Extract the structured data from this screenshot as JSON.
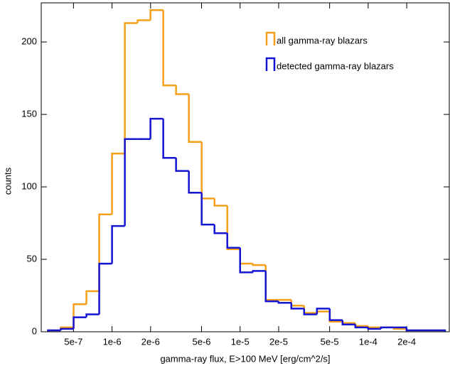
{
  "chart_data": {
    "type": "histogram",
    "xlabel": "gamma-ray flux, E>100 MeV [erg/cm^2/s]",
    "ylabel": "counts",
    "xscale": "log",
    "bins": [
      3.162e-07,
      3.981e-07,
      5.012e-07,
      6.31e-07,
      7.943e-07,
      1e-06,
      1.259e-06,
      1.585e-06,
      1.995e-06,
      2.512e-06,
      3.162e-06,
      3.981e-06,
      5.012e-06,
      6.31e-06,
      7.943e-06,
      1e-05,
      1.259e-05,
      1.585e-05,
      1.995e-05,
      2.512e-05,
      3.162e-05,
      3.981e-05,
      5.012e-05,
      6.31e-05,
      7.943e-05,
      0.0001,
      0.0001259,
      0.0001585,
      0.0001995,
      0.0002512,
      0.0003162,
      0.0003981
    ],
    "series": [
      {
        "name": "all gamma-ray blazars",
        "color": "#f5a01a",
        "values": [
          1,
          3,
          19,
          28,
          81,
          123,
          213,
          215,
          222,
          170,
          164,
          131,
          92,
          87,
          57,
          47,
          46,
          22,
          22,
          18,
          13,
          14,
          7,
          6,
          4,
          3,
          3,
          2,
          1,
          1,
          1
        ]
      },
      {
        "name": "detected gamma-ray blazars",
        "color": "#1414d2",
        "values": [
          1,
          2,
          10,
          12,
          47,
          73,
          133,
          133,
          147,
          120,
          111,
          96,
          74,
          68,
          58,
          41,
          42,
          21,
          20,
          16,
          12,
          16,
          8,
          5,
          3,
          2,
          3,
          3,
          1,
          1,
          1
        ]
      }
    ],
    "xlim": [
      2.8e-07,
      0.00043
    ],
    "ylim": [
      0,
      227
    ],
    "xticks": [
      {
        "value": 5e-07,
        "label": "5e-7"
      },
      {
        "value": 1e-06,
        "label": "1e-6"
      },
      {
        "value": 2e-06,
        "label": "2e-6"
      },
      {
        "value": 5e-06,
        "label": "5e-6"
      },
      {
        "value": 1e-05,
        "label": "1e-5"
      },
      {
        "value": 2e-05,
        "label": "2e-5"
      },
      {
        "value": 5e-05,
        "label": "5e-5"
      },
      {
        "value": 0.0001,
        "label": "1e-4"
      },
      {
        "value": 0.0002,
        "label": "2e-4"
      }
    ],
    "yticks": [
      0,
      50,
      100,
      150,
      200
    ]
  }
}
